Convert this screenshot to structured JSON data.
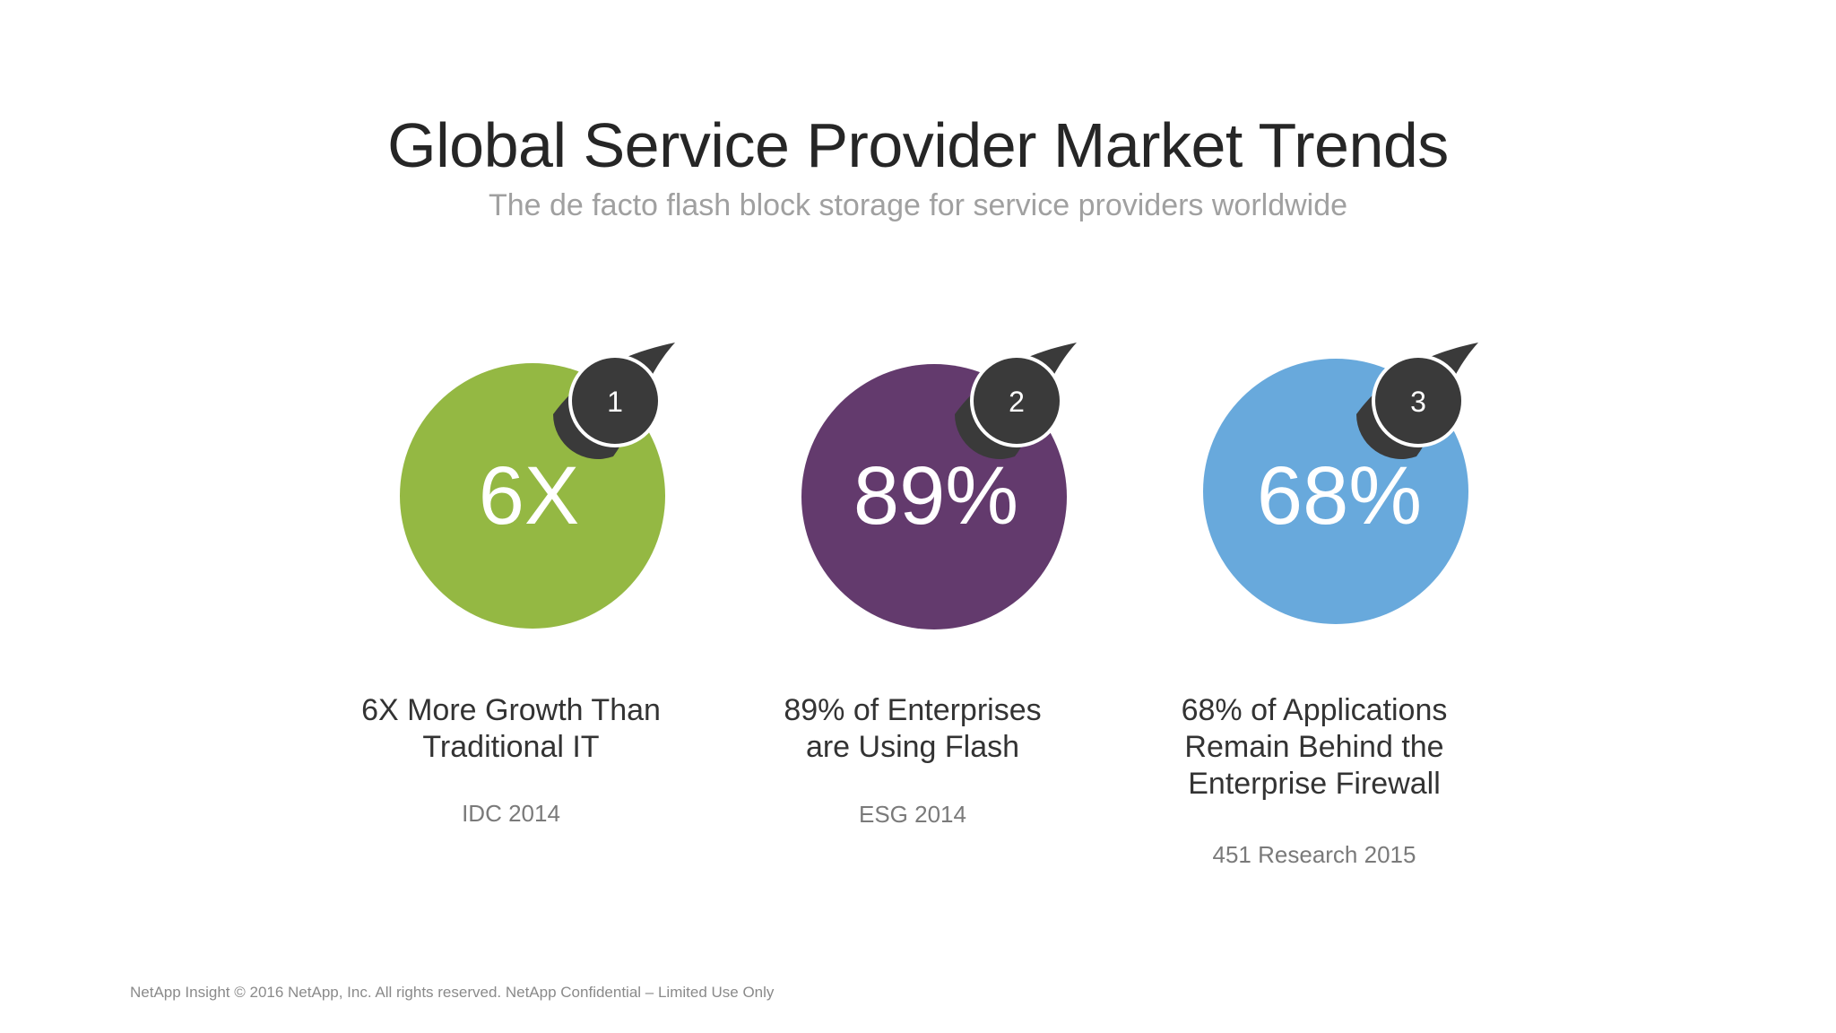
{
  "slide": {
    "title": "Global Service Provider Market Trends",
    "subtitle": "The de facto flash block storage for service providers worldwide",
    "footer": "NetApp Insight  © 2016 NetApp, Inc. All rights reserved. NetApp Confidential – Limited Use Only"
  },
  "stats": [
    {
      "number": "1",
      "value": "6X",
      "description_lines": [
        "6X More Growth Than",
        "Traditional IT"
      ],
      "source": "IDC 2014",
      "color": "#94b843"
    },
    {
      "number": "2",
      "value": "89%",
      "description_lines": [
        "89% of Enterprises",
        "are Using Flash"
      ],
      "source": "ESG 2014",
      "color": "#633a6d"
    },
    {
      "number": "3",
      "value": "68%",
      "description_lines": [
        "68% of Applications",
        "Remain Behind the",
        "Enterprise Firewall"
      ],
      "source": "451 Research 2015",
      "color": "#68a9dc"
    }
  ],
  "badge_color": "#3a3a3a"
}
